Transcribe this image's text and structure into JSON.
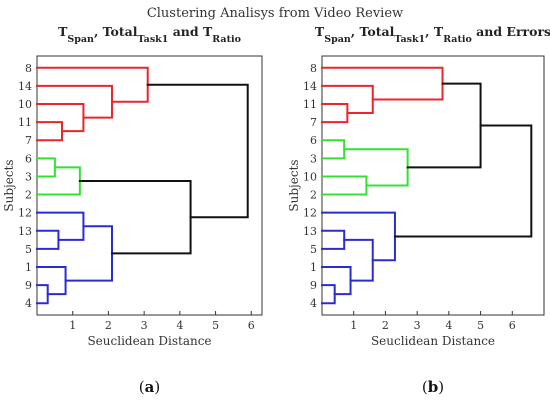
{
  "suptitle": "Clustering Analisys from Video Review",
  "colors": {
    "red": "#e8262b",
    "green": "#33e133",
    "blue": "#2b2bd6",
    "black": "#111111"
  },
  "chart_data": [
    {
      "type": "dendrogram",
      "panel_label": "a",
      "title_parts": [
        {
          "t": "T",
          "sub": false
        },
        {
          "t": "Span",
          "sub": true
        },
        {
          "t": ", Total",
          "sub": false
        },
        {
          "t": "Task1",
          "sub": true
        },
        {
          "t": " and T",
          "sub": false
        },
        {
          "t": "Ratio",
          "sub": true
        }
      ],
      "xlabel": "Seuclidean Distance",
      "ylabel": "Subjects",
      "xlim": [
        0,
        6.3
      ],
      "xticks": [
        1,
        2,
        3,
        4,
        5,
        6
      ],
      "leaf_order": [
        "8",
        "14",
        "10",
        "11",
        "7",
        "6",
        "3",
        "2",
        "12",
        "13",
        "5",
        "1",
        "9",
        "4"
      ],
      "merges": [
        {
          "a": "L:11",
          "b": "L:7",
          "h": 0.7,
          "color": "red"
        },
        {
          "a": "L:10",
          "b": "M0",
          "h": 1.3,
          "color": "red"
        },
        {
          "a": "L:14",
          "b": "M1",
          "h": 2.1,
          "color": "red"
        },
        {
          "a": "L:8",
          "b": "M2",
          "h": 3.1,
          "color": "red"
        },
        {
          "a": "L:6",
          "b": "L:3",
          "h": 0.5,
          "color": "green"
        },
        {
          "a": "M4",
          "b": "L:2",
          "h": 1.2,
          "color": "green"
        },
        {
          "a": "L:13",
          "b": "L:5",
          "h": 0.6,
          "color": "blue"
        },
        {
          "a": "L:12",
          "b": "M6",
          "h": 1.3,
          "color": "blue"
        },
        {
          "a": "L:9",
          "b": "L:4",
          "h": 0.3,
          "color": "blue"
        },
        {
          "a": "L:1",
          "b": "M8",
          "h": 0.8,
          "color": "blue"
        },
        {
          "a": "M7",
          "b": "M9",
          "h": 2.1,
          "color": "blue"
        },
        {
          "a": "M5",
          "b": "M10",
          "h": 4.3,
          "color": "black"
        },
        {
          "a": "M3",
          "b": "M11",
          "h": 5.9,
          "color": "black"
        }
      ]
    },
    {
      "type": "dendrogram",
      "panel_label": "b",
      "title_parts": [
        {
          "t": "T",
          "sub": false
        },
        {
          "t": "Span",
          "sub": true
        },
        {
          "t": ", Total",
          "sub": false
        },
        {
          "t": "Task1",
          "sub": true
        },
        {
          "t": ", T",
          "sub": false
        },
        {
          "t": "Ratio",
          "sub": true
        },
        {
          "t": " and Errors",
          "sub": false
        }
      ],
      "xlabel": "Seuclidean Distance",
      "ylabel": "Subjects",
      "xlim": [
        0,
        7.0
      ],
      "xticks": [
        1,
        2,
        3,
        4,
        5,
        6
      ],
      "leaf_order": [
        "8",
        "14",
        "11",
        "7",
        "6",
        "3",
        "10",
        "2",
        "12",
        "13",
        "5",
        "1",
        "9",
        "4"
      ],
      "merges": [
        {
          "a": "L:11",
          "b": "L:7",
          "h": 0.8,
          "color": "red"
        },
        {
          "a": "L:14",
          "b": "M0",
          "h": 1.6,
          "color": "red"
        },
        {
          "a": "L:8",
          "b": "M1",
          "h": 3.8,
          "color": "red"
        },
        {
          "a": "L:6",
          "b": "L:3",
          "h": 0.7,
          "color": "green"
        },
        {
          "a": "L:10",
          "b": "L:2",
          "h": 1.4,
          "color": "green"
        },
        {
          "a": "M3",
          "b": "M4",
          "h": 2.7,
          "color": "green"
        },
        {
          "a": "M2",
          "b": "M5",
          "h": 5.0,
          "color": "black"
        },
        {
          "a": "L:9",
          "b": "L:4",
          "h": 0.4,
          "color": "blue"
        },
        {
          "a": "L:1",
          "b": "M7",
          "h": 0.9,
          "color": "blue"
        },
        {
          "a": "L:13",
          "b": "L:5",
          "h": 0.7,
          "color": "blue"
        },
        {
          "a": "M9",
          "b": "M8",
          "h": 1.6,
          "color": "blue"
        },
        {
          "a": "L:12",
          "b": "M10",
          "h": 2.3,
          "color": "blue"
        },
        {
          "a": "M6",
          "b": "M11",
          "h": 6.6,
          "color": "black"
        }
      ]
    }
  ]
}
